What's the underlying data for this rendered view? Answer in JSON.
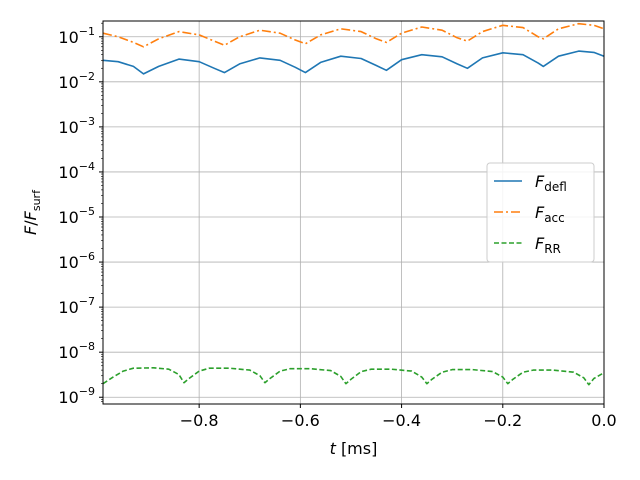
{
  "chart_data": {
    "type": "line",
    "xlabel": {
      "var": "t",
      "unit": "[ms]"
    },
    "ylabel": {
      "var": "F",
      "sub": "surf"
    },
    "xlim": [
      -0.99,
      0.0
    ],
    "ylim_log10": [
      -9.15,
      -0.65
    ],
    "yscale": "log",
    "grid": true,
    "legend_position": "center-right",
    "x_ticks": [
      {
        "value": -0.8,
        "label": "−0.8"
      },
      {
        "value": -0.6,
        "label": "−0.6"
      },
      {
        "value": -0.4,
        "label": "−0.4"
      },
      {
        "value": -0.2,
        "label": "−0.2"
      },
      {
        "value": 0.0,
        "label": "0.0"
      }
    ],
    "y_ticks": [
      {
        "exp": -1,
        "label": "10",
        "sup": "−1"
      },
      {
        "exp": -2,
        "label": "10",
        "sup": "−2"
      },
      {
        "exp": -3,
        "label": "10",
        "sup": "−3"
      },
      {
        "exp": -4,
        "label": "10",
        "sup": "−4"
      },
      {
        "exp": -5,
        "label": "10",
        "sup": "−5"
      },
      {
        "exp": -6,
        "label": "10",
        "sup": "−6"
      },
      {
        "exp": -7,
        "label": "10",
        "sup": "−7"
      },
      {
        "exp": -8,
        "label": "10",
        "sup": "−8"
      },
      {
        "exp": -9,
        "label": "10",
        "sup": "−9"
      }
    ],
    "series": [
      {
        "name": "F",
        "name_sub": "defl",
        "color": "#1f77b4",
        "style": "solid",
        "x": [
          -0.99,
          -0.96,
          -0.93,
          -0.91,
          -0.88,
          -0.84,
          -0.8,
          -0.77,
          -0.75,
          -0.72,
          -0.68,
          -0.64,
          -0.61,
          -0.59,
          -0.56,
          -0.52,
          -0.48,
          -0.45,
          -0.43,
          -0.4,
          -0.36,
          -0.32,
          -0.29,
          -0.27,
          -0.24,
          -0.2,
          -0.16,
          -0.13,
          -0.12,
          -0.09,
          -0.05,
          -0.02,
          0.0
        ],
        "y": [
          0.03,
          0.028,
          0.022,
          0.015,
          0.022,
          0.032,
          0.028,
          0.02,
          0.016,
          0.025,
          0.034,
          0.03,
          0.021,
          0.016,
          0.027,
          0.037,
          0.033,
          0.023,
          0.018,
          0.031,
          0.04,
          0.036,
          0.025,
          0.02,
          0.034,
          0.044,
          0.04,
          0.026,
          0.022,
          0.037,
          0.048,
          0.045,
          0.037
        ]
      },
      {
        "name": "F",
        "name_sub": "acc",
        "color": "#ff7f0e",
        "style": "dashdot",
        "x": [
          -0.99,
          -0.96,
          -0.93,
          -0.91,
          -0.88,
          -0.84,
          -0.8,
          -0.77,
          -0.75,
          -0.72,
          -0.68,
          -0.64,
          -0.61,
          -0.59,
          -0.56,
          -0.52,
          -0.48,
          -0.45,
          -0.43,
          -0.4,
          -0.36,
          -0.32,
          -0.29,
          -0.27,
          -0.24,
          -0.2,
          -0.16,
          -0.13,
          -0.12,
          -0.09,
          -0.05,
          -0.02,
          0.0
        ],
        "y": [
          0.12,
          0.1,
          0.075,
          0.06,
          0.09,
          0.13,
          0.11,
          0.08,
          0.065,
          0.1,
          0.14,
          0.12,
          0.085,
          0.07,
          0.11,
          0.15,
          0.13,
          0.09,
          0.075,
          0.12,
          0.165,
          0.14,
          0.095,
          0.08,
          0.13,
          0.18,
          0.16,
          0.1,
          0.09,
          0.15,
          0.195,
          0.18,
          0.15
        ]
      },
      {
        "name": "F",
        "name_sub": "RR",
        "color": "#2ca02c",
        "style": "dashed",
        "x": [
          -0.99,
          -0.97,
          -0.95,
          -0.93,
          -0.89,
          -0.86,
          -0.84,
          -0.83,
          -0.82,
          -0.8,
          -0.78,
          -0.74,
          -0.7,
          -0.68,
          -0.67,
          -0.66,
          -0.64,
          -0.62,
          -0.58,
          -0.54,
          -0.52,
          -0.51,
          -0.5,
          -0.48,
          -0.46,
          -0.42,
          -0.38,
          -0.36,
          -0.35,
          -0.34,
          -0.32,
          -0.3,
          -0.26,
          -0.22,
          -0.2,
          -0.19,
          -0.18,
          -0.16,
          -0.14,
          -0.1,
          -0.06,
          -0.04,
          -0.03,
          -0.02,
          0.0
        ],
        "y": [
          2e-09,
          2.8e-09,
          3.8e-09,
          4.4e-09,
          4.5e-09,
          4.2e-09,
          3.2e-09,
          2.1e-09,
          2.6e-09,
          3.8e-09,
          4.4e-09,
          4.4e-09,
          4e-09,
          3e-09,
          2.1e-09,
          2.6e-09,
          3.8e-09,
          4.3e-09,
          4.3e-09,
          3.9e-09,
          2.9e-09,
          2e-09,
          2.5e-09,
          3.7e-09,
          4.2e-09,
          4.2e-09,
          3.8e-09,
          2.8e-09,
          2e-09,
          2.5e-09,
          3.6e-09,
          4.1e-09,
          4.1e-09,
          3.7e-09,
          2.8e-09,
          2e-09,
          2.5e-09,
          3.6e-09,
          4e-09,
          4e-09,
          3.6e-09,
          2.7e-09,
          1.9e-09,
          2.6e-09,
          3.5e-09
        ]
      }
    ]
  }
}
